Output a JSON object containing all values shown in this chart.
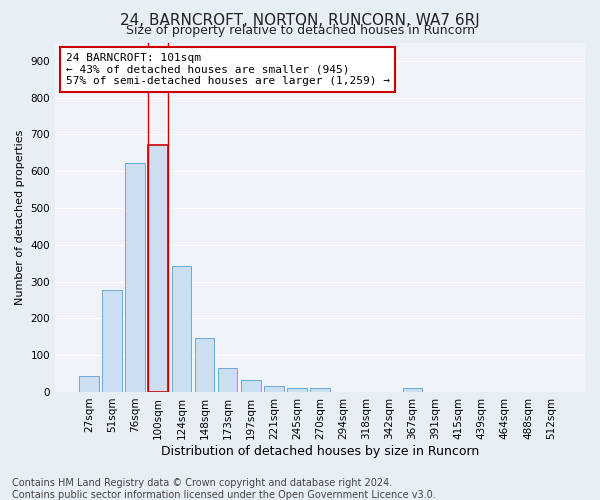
{
  "title": "24, BARNCROFT, NORTON, RUNCORN, WA7 6RJ",
  "subtitle": "Size of property relative to detached houses in Runcorn",
  "xlabel": "Distribution of detached houses by size in Runcorn",
  "ylabel": "Number of detached properties",
  "footer_line1": "Contains HM Land Registry data © Crown copyright and database right 2024.",
  "footer_line2": "Contains public sector information licensed under the Open Government Licence v3.0.",
  "categories": [
    "27sqm",
    "51sqm",
    "76sqm",
    "100sqm",
    "124sqm",
    "148sqm",
    "173sqm",
    "197sqm",
    "221sqm",
    "245sqm",
    "270sqm",
    "294sqm",
    "318sqm",
    "342sqm",
    "367sqm",
    "391sqm",
    "415sqm",
    "439sqm",
    "464sqm",
    "488sqm",
    "512sqm"
  ],
  "values": [
    43,
    278,
    622,
    670,
    343,
    148,
    65,
    32,
    15,
    11,
    11,
    0,
    0,
    0,
    10,
    0,
    0,
    0,
    0,
    0,
    0
  ],
  "bar_color": "#ccdff0",
  "bar_edge_color": "#6aaad4",
  "highlight_bar_index": 3,
  "highlight_bar_edge_color": "#cc0000",
  "annotation_line1": "24 BARNCROFT: 101sqm",
  "annotation_line2": "← 43% of detached houses are smaller (945)",
  "annotation_line3": "57% of semi-detached houses are larger (1,259) →",
  "annotation_box_edge_color": "#cc0000",
  "ylim": [
    0,
    950
  ],
  "yticks": [
    0,
    100,
    200,
    300,
    400,
    500,
    600,
    700,
    800,
    900
  ],
  "bg_color": "#e8eef5",
  "plot_bg_color": "#f0f4fa",
  "grid_color": "#ffffff",
  "title_fontsize": 11,
  "subtitle_fontsize": 9,
  "xlabel_fontsize": 9,
  "ylabel_fontsize": 8,
  "tick_fontsize": 7.5,
  "annotation_fontsize": 8,
  "footer_fontsize": 7
}
